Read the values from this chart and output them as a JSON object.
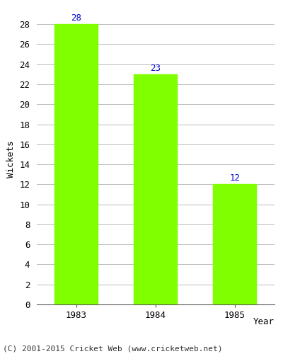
{
  "categories": [
    "1983",
    "1984",
    "1985"
  ],
  "values": [
    28,
    23,
    12
  ],
  "bar_color": "#7FFF00",
  "bar_edge_color": "#7FFF00",
  "xlabel": "Year",
  "ylabel": "Wickets",
  "ylim": [
    0,
    29
  ],
  "ytick_step": 2,
  "annotation_color": "#0000CC",
  "annotation_fontsize": 9,
  "xlabel_fontsize": 9,
  "ylabel_fontsize": 9,
  "tick_fontsize": 9,
  "footer_text": "(C) 2001-2015 Cricket Web (www.cricketweb.net)",
  "footer_fontsize": 8,
  "background_color": "#ffffff",
  "grid_color": "#bbbbbb"
}
